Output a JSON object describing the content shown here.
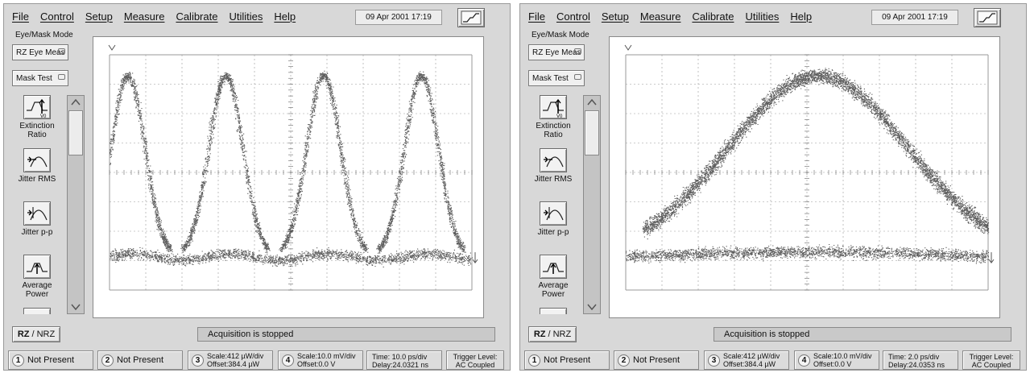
{
  "screens": [
    {
      "menu": [
        "File",
        "Control",
        "Setup",
        "Measure",
        "Calibrate",
        "Utilities",
        "Help"
      ],
      "datetime": "09 Apr 2001   17:19",
      "mode_label": "Eye/Mask Mode",
      "meas_select": "RZ Eye Meas",
      "mask_select": "Mask Test",
      "tools": [
        {
          "label": "Extinction Ratio",
          "icon": "extinction-ratio-icon"
        },
        {
          "label": "Jitter RMS",
          "icon": "jitter-rms-icon"
        },
        {
          "label": "Jitter p-p",
          "icon": "jitter-pp-icon"
        },
        {
          "label": "Average Power",
          "icon": "average-power-icon"
        }
      ],
      "rz_rz": "RZ",
      "rz_sep": "/",
      "rz_nrz": "NRZ",
      "status": "Acquisition is stopped",
      "ch1": {
        "num": "1",
        "text": "Not Present"
      },
      "ch2": {
        "num": "2",
        "text": "Not Present"
      },
      "ch3": {
        "num": "3",
        "line1": "Scale:412 µW/div",
        "line2": "Offset:384.4 µW"
      },
      "ch4": {
        "num": "4",
        "line1": "Scale:10.0 mV/div",
        "line2": "Offset:0.0 V"
      },
      "timebase": {
        "line1": "Time:  10.0 ps/div",
        "line2": "Delay:24.0321 ns"
      },
      "trigger": {
        "line1": "Trigger Level:",
        "line2": "AC Coupled"
      },
      "trace": {
        "type": "eye-diagram",
        "peaks_visible": 4,
        "x_divisions": 10,
        "y_divisions": 8
      }
    },
    {
      "menu": [
        "File",
        "Control",
        "Setup",
        "Measure",
        "Calibrate",
        "Utilities",
        "Help"
      ],
      "datetime": "09 Apr 2001   17:19",
      "mode_label": "Eye/Mask Mode",
      "meas_select": "RZ Eye Meas",
      "mask_select": "Mask Test",
      "tools": [
        {
          "label": "Extinction Ratio",
          "icon": "extinction-ratio-icon"
        },
        {
          "label": "Jitter RMS",
          "icon": "jitter-rms-icon"
        },
        {
          "label": "Jitter p-p",
          "icon": "jitter-pp-icon"
        },
        {
          "label": "Average Power",
          "icon": "average-power-icon"
        }
      ],
      "rz_rz": "RZ",
      "rz_sep": "/",
      "rz_nrz": "NRZ",
      "status": "Acquisition is stopped",
      "ch1": {
        "num": "1",
        "text": "Not Present"
      },
      "ch2": {
        "num": "2",
        "text": "Not Present"
      },
      "ch3": {
        "num": "3",
        "line1": "Scale:412 µW/div",
        "line2": "Offset:384.4 µW"
      },
      "ch4": {
        "num": "4",
        "line1": "Scale:10.0 mV/div",
        "line2": "Offset:0.0 V"
      },
      "timebase": {
        "line1": "Time:  2.0 ps/div",
        "line2": "Delay:24.0353 ns"
      },
      "trigger": {
        "line1": "Trigger Level:",
        "line2": "AC Coupled"
      },
      "trace": {
        "type": "eye-diagram",
        "peaks_visible": 1,
        "x_divisions": 10,
        "y_divisions": 8
      }
    }
  ]
}
